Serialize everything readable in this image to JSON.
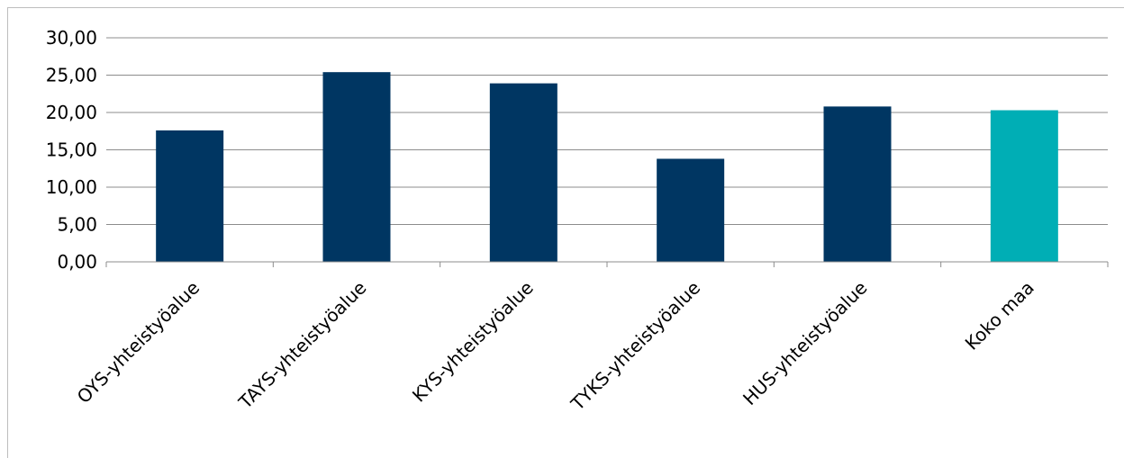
{
  "chart_data": {
    "type": "bar",
    "categories": [
      "OYS-yhteistyöalue",
      "TAYS-yhteistyöalue",
      "KYS-yhteistyöalue",
      "TYKS-yhteistyöalue",
      "HUS-yhteistyöalue",
      "Koko maa"
    ],
    "values": [
      17.6,
      25.4,
      23.9,
      13.8,
      20.8,
      20.3
    ],
    "bar_colors": [
      "#003662",
      "#003662",
      "#003662",
      "#003662",
      "#003662",
      "#00aeb5"
    ],
    "ylim": [
      0,
      30
    ],
    "yticks": [
      "0,00",
      "5,00",
      "10,00",
      "15,00",
      "20,00",
      "25,00",
      "30,00"
    ],
    "grid": true,
    "legend": "none",
    "title": "",
    "xlabel": "",
    "ylabel": ""
  }
}
